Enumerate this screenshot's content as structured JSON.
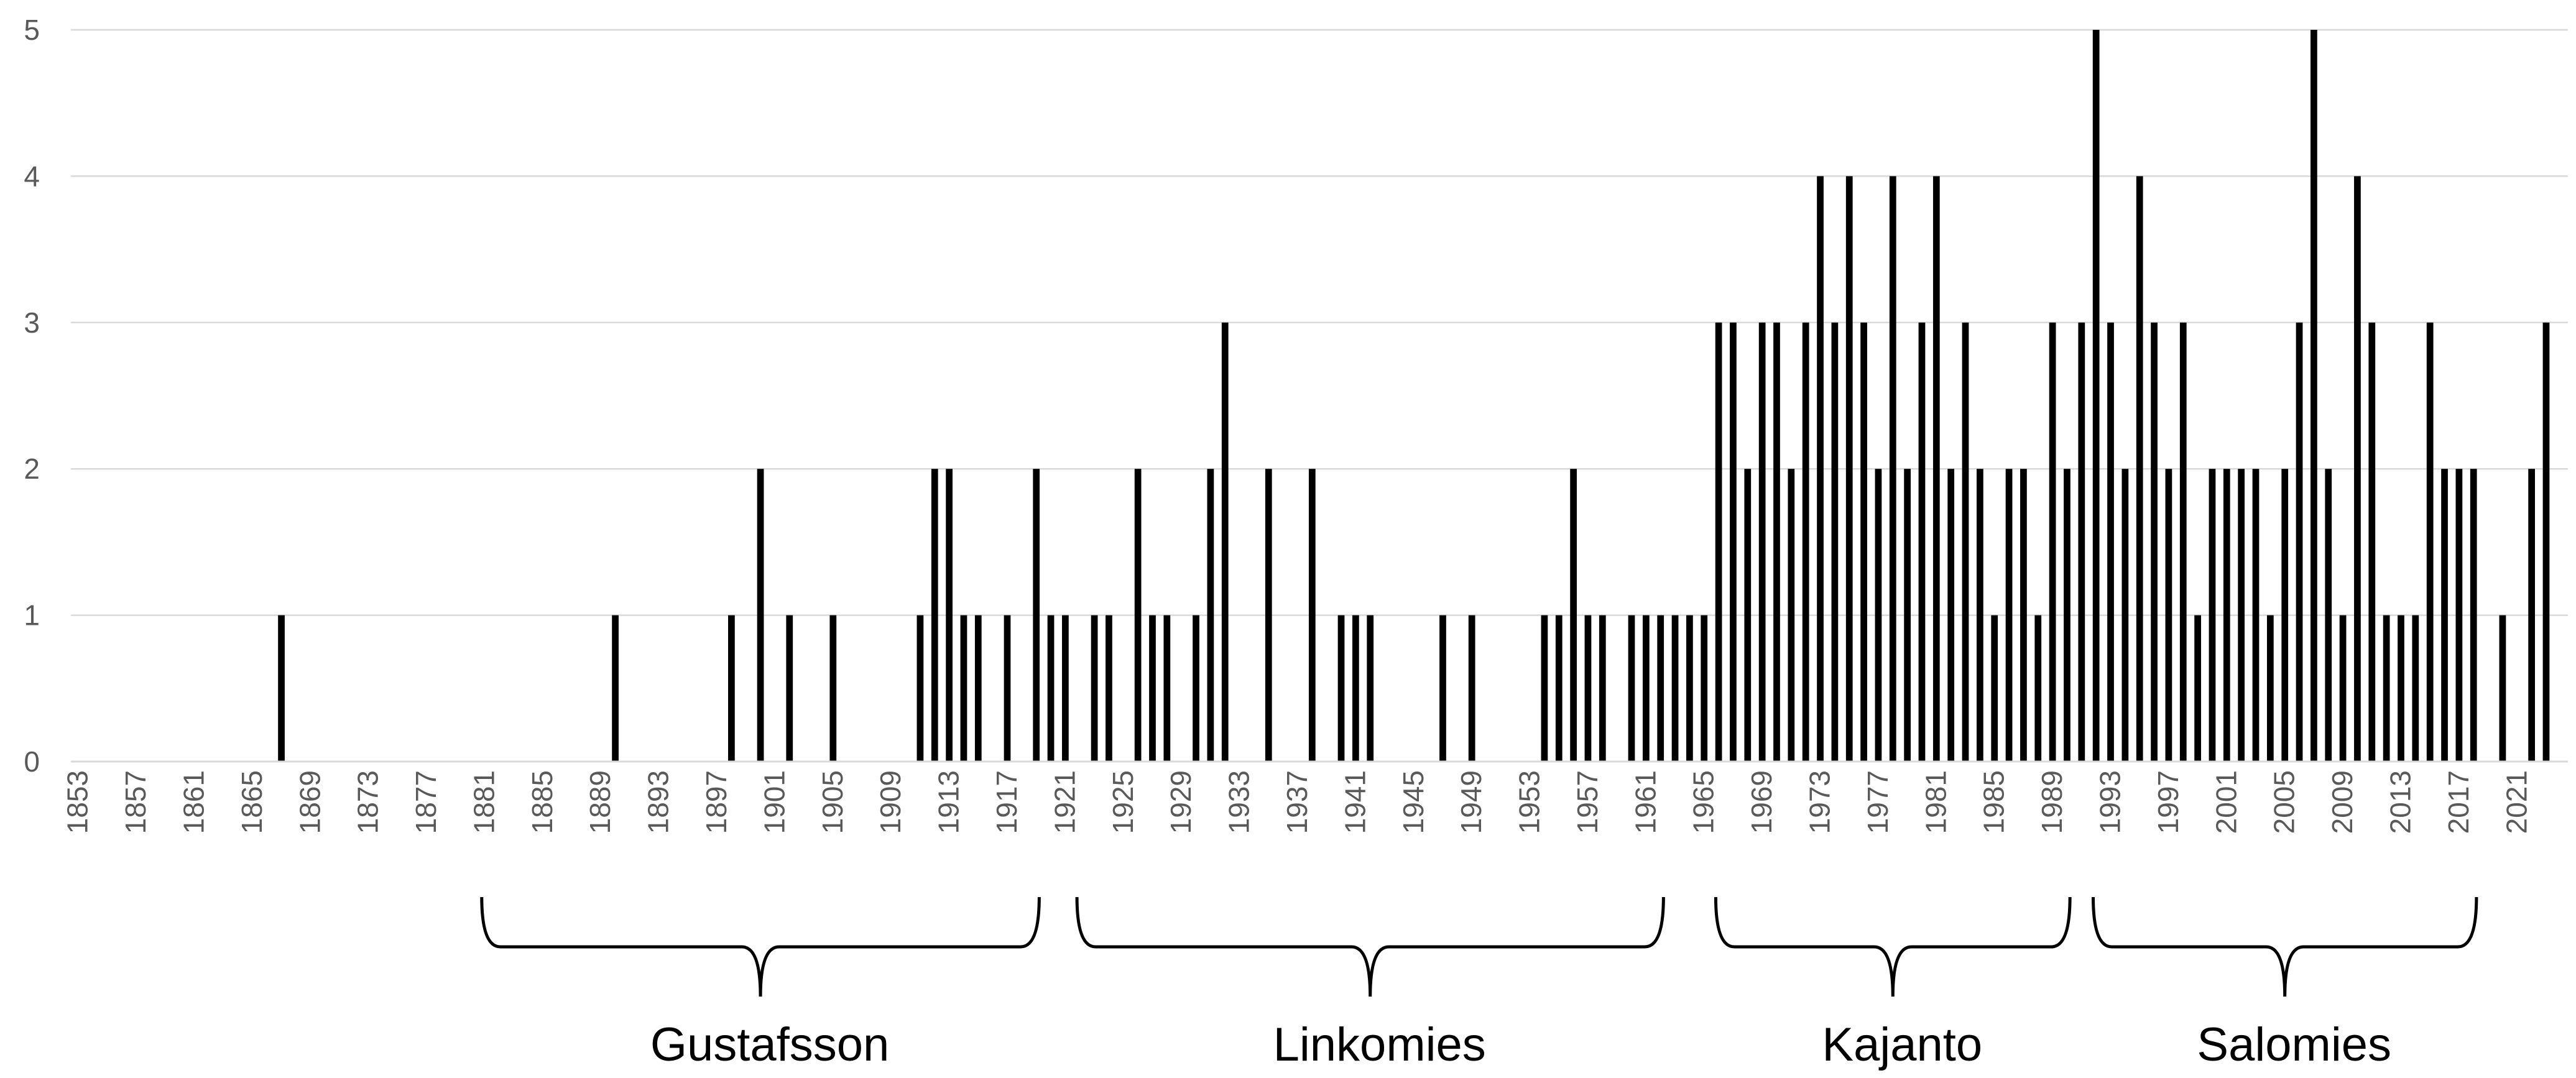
{
  "chart_data": {
    "type": "bar",
    "title": "",
    "xlabel": "",
    "ylabel": "",
    "x_range": [
      1853,
      2024
    ],
    "ylim": [
      0,
      5
    ],
    "y_ticks": [
      "0",
      "1",
      "2",
      "3",
      "4",
      "5"
    ],
    "x_tick_labels": [
      "1853",
      "1857",
      "1861",
      "1865",
      "1869",
      "1873",
      "1877",
      "1881",
      "1885",
      "1889",
      "1893",
      "1897",
      "1901",
      "1905",
      "1909",
      "1913",
      "1917",
      "1921",
      "1925",
      "1929",
      "1933",
      "1937",
      "1941",
      "1945",
      "1949",
      "1953",
      "1957",
      "1961",
      "1965",
      "1969",
      "1973",
      "1977",
      "1981",
      "1985",
      "1989",
      "1993",
      "1997",
      "2001",
      "2005",
      "2009",
      "2013",
      "2017",
      "2021"
    ],
    "grid": "horizontal",
    "bar_color": "#000000",
    "points": [
      [
        1867,
        1
      ],
      [
        1890,
        1
      ],
      [
        1898,
        1
      ],
      [
        1900,
        2
      ],
      [
        1902,
        1
      ],
      [
        1905,
        1
      ],
      [
        1911,
        1
      ],
      [
        1912,
        2
      ],
      [
        1913,
        2
      ],
      [
        1914,
        1
      ],
      [
        1915,
        1
      ],
      [
        1917,
        1
      ],
      [
        1919,
        2
      ],
      [
        1920,
        1
      ],
      [
        1921,
        1
      ],
      [
        1923,
        1
      ],
      [
        1924,
        1
      ],
      [
        1926,
        2
      ],
      [
        1927,
        1
      ],
      [
        1928,
        1
      ],
      [
        1930,
        1
      ],
      [
        1931,
        2
      ],
      [
        1932,
        3
      ],
      [
        1935,
        2
      ],
      [
        1938,
        2
      ],
      [
        1940,
        1
      ],
      [
        1941,
        1
      ],
      [
        1942,
        1
      ],
      [
        1947,
        1
      ],
      [
        1949,
        1
      ],
      [
        1954,
        1
      ],
      [
        1955,
        1
      ],
      [
        1956,
        2
      ],
      [
        1957,
        1
      ],
      [
        1958,
        1
      ],
      [
        1960,
        1
      ],
      [
        1961,
        1
      ],
      [
        1962,
        1
      ],
      [
        1963,
        1
      ],
      [
        1964,
        1
      ],
      [
        1965,
        1
      ],
      [
        1966,
        3
      ],
      [
        1967,
        3
      ],
      [
        1968,
        2
      ],
      [
        1969,
        3
      ],
      [
        1970,
        3
      ],
      [
        1971,
        2
      ],
      [
        1972,
        3
      ],
      [
        1973,
        4
      ],
      [
        1974,
        3
      ],
      [
        1975,
        4
      ],
      [
        1976,
        3
      ],
      [
        1977,
        2
      ],
      [
        1978,
        4
      ],
      [
        1979,
        2
      ],
      [
        1980,
        3
      ],
      [
        1981,
        4
      ],
      [
        1982,
        2
      ],
      [
        1983,
        3
      ],
      [
        1984,
        2
      ],
      [
        1985,
        1
      ],
      [
        1986,
        2
      ],
      [
        1987,
        2
      ],
      [
        1988,
        1
      ],
      [
        1989,
        3
      ],
      [
        1990,
        2
      ],
      [
        1991,
        3
      ],
      [
        1992,
        5
      ],
      [
        1993,
        3
      ],
      [
        1994,
        2
      ],
      [
        1995,
        4
      ],
      [
        1996,
        3
      ],
      [
        1997,
        2
      ],
      [
        1998,
        3
      ],
      [
        1999,
        1
      ],
      [
        2000,
        2
      ],
      [
        2001,
        2
      ],
      [
        2002,
        2
      ],
      [
        2003,
        2
      ],
      [
        2004,
        1
      ],
      [
        2005,
        2
      ],
      [
        2006,
        3
      ],
      [
        2007,
        5
      ],
      [
        2008,
        2
      ],
      [
        2009,
        1
      ],
      [
        2010,
        4
      ],
      [
        2011,
        3
      ],
      [
        2012,
        1
      ],
      [
        2013,
        1
      ],
      [
        2014,
        1
      ],
      [
        2015,
        3
      ],
      [
        2016,
        2
      ],
      [
        2017,
        2
      ],
      [
        2018,
        2
      ],
      [
        2020,
        1
      ],
      [
        2022,
        2
      ],
      [
        2023,
        3
      ]
    ],
    "periods": [
      {
        "label": "Gustafsson",
        "from": 1881,
        "to": 1919
      },
      {
        "label": "Linkomies",
        "from": 1922,
        "to": 1962
      },
      {
        "label": "Kajanto",
        "from": 1966,
        "to": 1990
      },
      {
        "label": "Salomies",
        "from": 1992,
        "to": 2018
      }
    ]
  }
}
